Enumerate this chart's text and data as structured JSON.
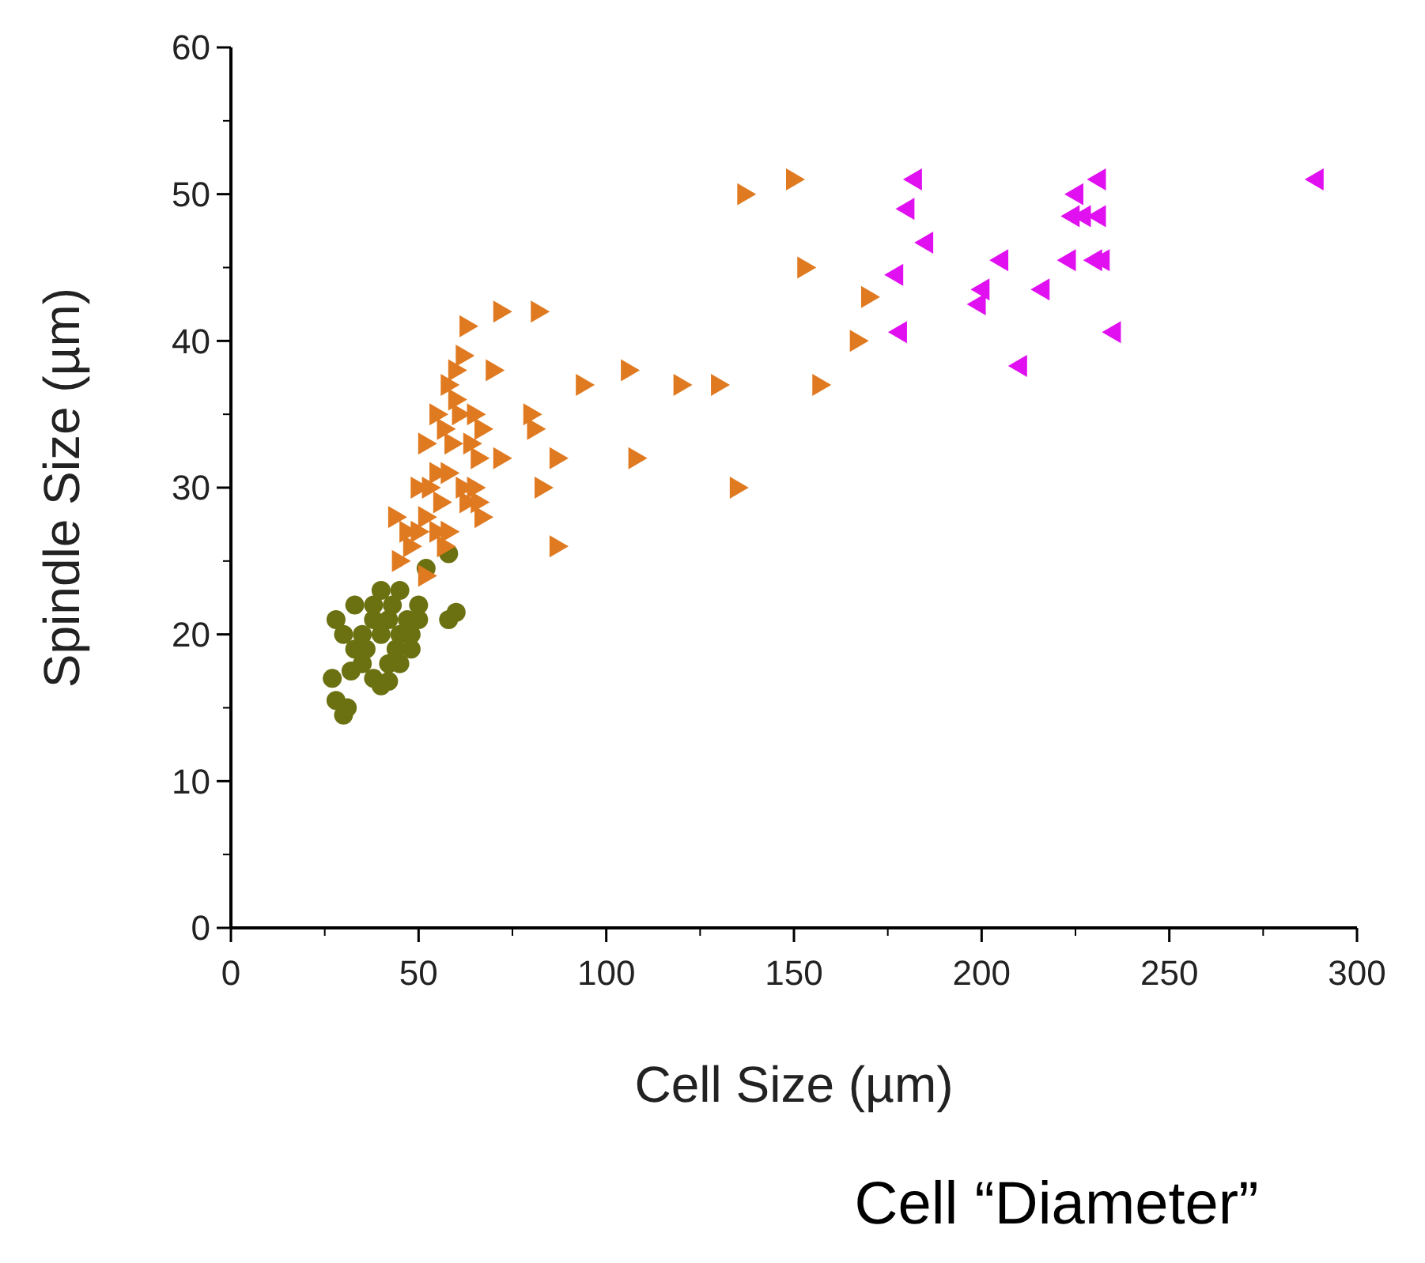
{
  "chart_data": {
    "type": "scatter",
    "xlabel": "Cell Size (µm)",
    "ylabel": "Spindle Size (µm)",
    "annotations": [
      "Cell “Diameter”"
    ],
    "xlim": [
      0,
      300
    ],
    "ylim": [
      0,
      60
    ],
    "xticks": [
      0,
      50,
      100,
      150,
      200,
      250,
      300
    ],
    "yticks": [
      0,
      10,
      20,
      30,
      40,
      50,
      60
    ],
    "grid": false,
    "series": [
      {
        "color": "#6b7010",
        "marker": "circle",
        "x": [
          28,
          30,
          31,
          27,
          32,
          35,
          38,
          40,
          42,
          45,
          48,
          33,
          30,
          28,
          35,
          38,
          40,
          42,
          45,
          47,
          38,
          40,
          43,
          45,
          33,
          36,
          44,
          42,
          50,
          58,
          60,
          52,
          58,
          50,
          48
        ],
        "values": [
          15.5,
          14.5,
          15,
          17,
          17.5,
          18,
          17,
          16.5,
          18,
          18,
          19,
          19,
          20,
          21,
          20,
          21,
          20,
          21,
          20,
          21,
          22,
          23,
          22,
          23,
          22,
          19,
          19,
          16.8,
          21,
          21,
          21.5,
          24.5,
          25.5,
          22,
          20
        ]
      },
      {
        "color": "#e07a20",
        "marker": "triangle-right",
        "x": [
          150,
          137,
          153,
          170,
          167,
          157,
          130,
          120,
          106,
          94,
          135,
          108,
          87,
          83,
          87,
          82,
          72,
          63,
          70,
          80,
          81,
          72,
          66,
          65,
          67,
          62,
          60,
          58,
          60,
          61,
          55,
          57,
          59,
          64,
          52,
          55,
          50,
          53,
          58,
          56,
          52,
          62,
          65,
          63,
          67,
          66,
          44,
          47,
          50,
          55,
          58,
          48,
          45,
          52,
          57
        ],
        "values": [
          51,
          50,
          45,
          43,
          40,
          37,
          37,
          37,
          38,
          37,
          30,
          32,
          32,
          30,
          26,
          42,
          42,
          41,
          38,
          35,
          34,
          32,
          32,
          35,
          34,
          39,
          38,
          37,
          36,
          35,
          35,
          34,
          33,
          33,
          33,
          31,
          30,
          30,
          31,
          29,
          28,
          30,
          30,
          29,
          28,
          29,
          28,
          27,
          27,
          27,
          27,
          26,
          25,
          24,
          26
        ]
      },
      {
        "color": "#e010f0",
        "marker": "triangle-left",
        "x": [
          182,
          180,
          185,
          177,
          178,
          199,
          200,
          205,
          210,
          216,
          223,
          225,
          224,
          227,
          231,
          231,
          230,
          232,
          235,
          289
        ],
        "values": [
          51,
          49,
          46.7,
          44.5,
          40.6,
          42.5,
          43.5,
          45.5,
          38.3,
          43.5,
          45.5,
          50,
          48.5,
          48.5,
          48.5,
          51,
          45.5,
          45.5,
          40.6,
          51
        ]
      }
    ]
  }
}
